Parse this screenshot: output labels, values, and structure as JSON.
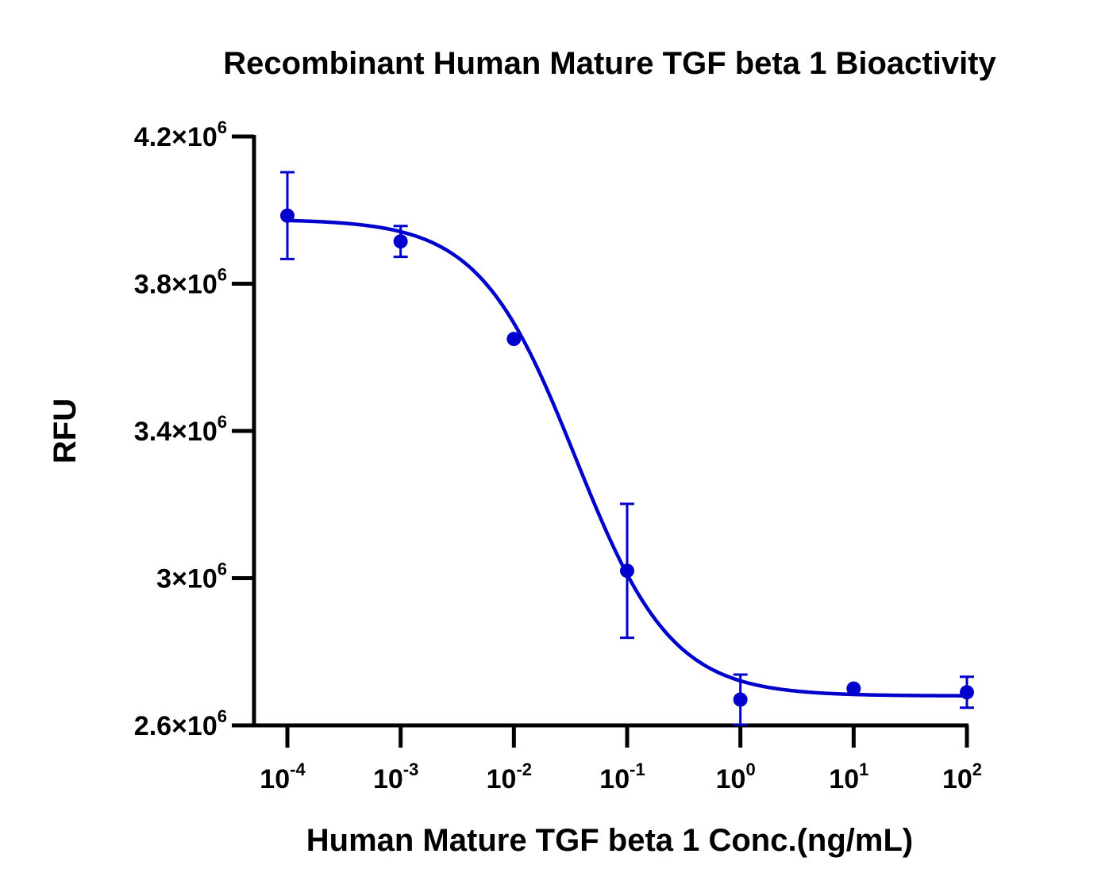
{
  "chart_data": {
    "type": "scatter",
    "title": "Recombinant Human Mature TGF beta 1 Bioactivity",
    "xlabel": "Human Mature TGF beta 1 Conc.(ng/mL)",
    "ylabel": "RFU",
    "x_scale": "log",
    "xlim": [
      0.0001,
      100
    ],
    "ylim": [
      2600000,
      4200000
    ],
    "x_ticks": [
      {
        "value": 0.0001,
        "base": "10",
        "exp": "-4"
      },
      {
        "value": 0.001,
        "base": "10",
        "exp": "-3"
      },
      {
        "value": 0.01,
        "base": "10",
        "exp": "-2"
      },
      {
        "value": 0.1,
        "base": "10",
        "exp": "-1"
      },
      {
        "value": 1,
        "base": "10",
        "exp": "0"
      },
      {
        "value": 10,
        "base": "10",
        "exp": "1"
      },
      {
        "value": 100,
        "base": "10",
        "exp": "2"
      }
    ],
    "y_ticks": [
      {
        "value": 2600000,
        "mant": "2.6×10",
        "exp": "6"
      },
      {
        "value": 3000000,
        "mant": "3×10",
        "exp": "6"
      },
      {
        "value": 3400000,
        "mant": "3.4×10",
        "exp": "6"
      },
      {
        "value": 3800000,
        "mant": "3.8×10",
        "exp": "6"
      },
      {
        "value": 4200000,
        "mant": "4.2×10",
        "exp": "6"
      }
    ],
    "series": [
      {
        "color": "#0000cc",
        "x": [
          0.0001,
          0.001,
          0.01,
          0.1,
          1,
          10,
          100
        ],
        "y": [
          3985000,
          3915000,
          3650000,
          3020000,
          2670000,
          2700000,
          2690000
        ],
        "err": [
          118000,
          42000,
          0,
          182000,
          68000,
          0,
          42000
        ]
      }
    ],
    "fit_curve": {
      "model": "4PL",
      "top": 3975000,
      "bottom": 2680000,
      "ec50": 0.035,
      "hill": 1.02,
      "color": "#0000cc"
    },
    "grid": false,
    "legend": "none"
  }
}
